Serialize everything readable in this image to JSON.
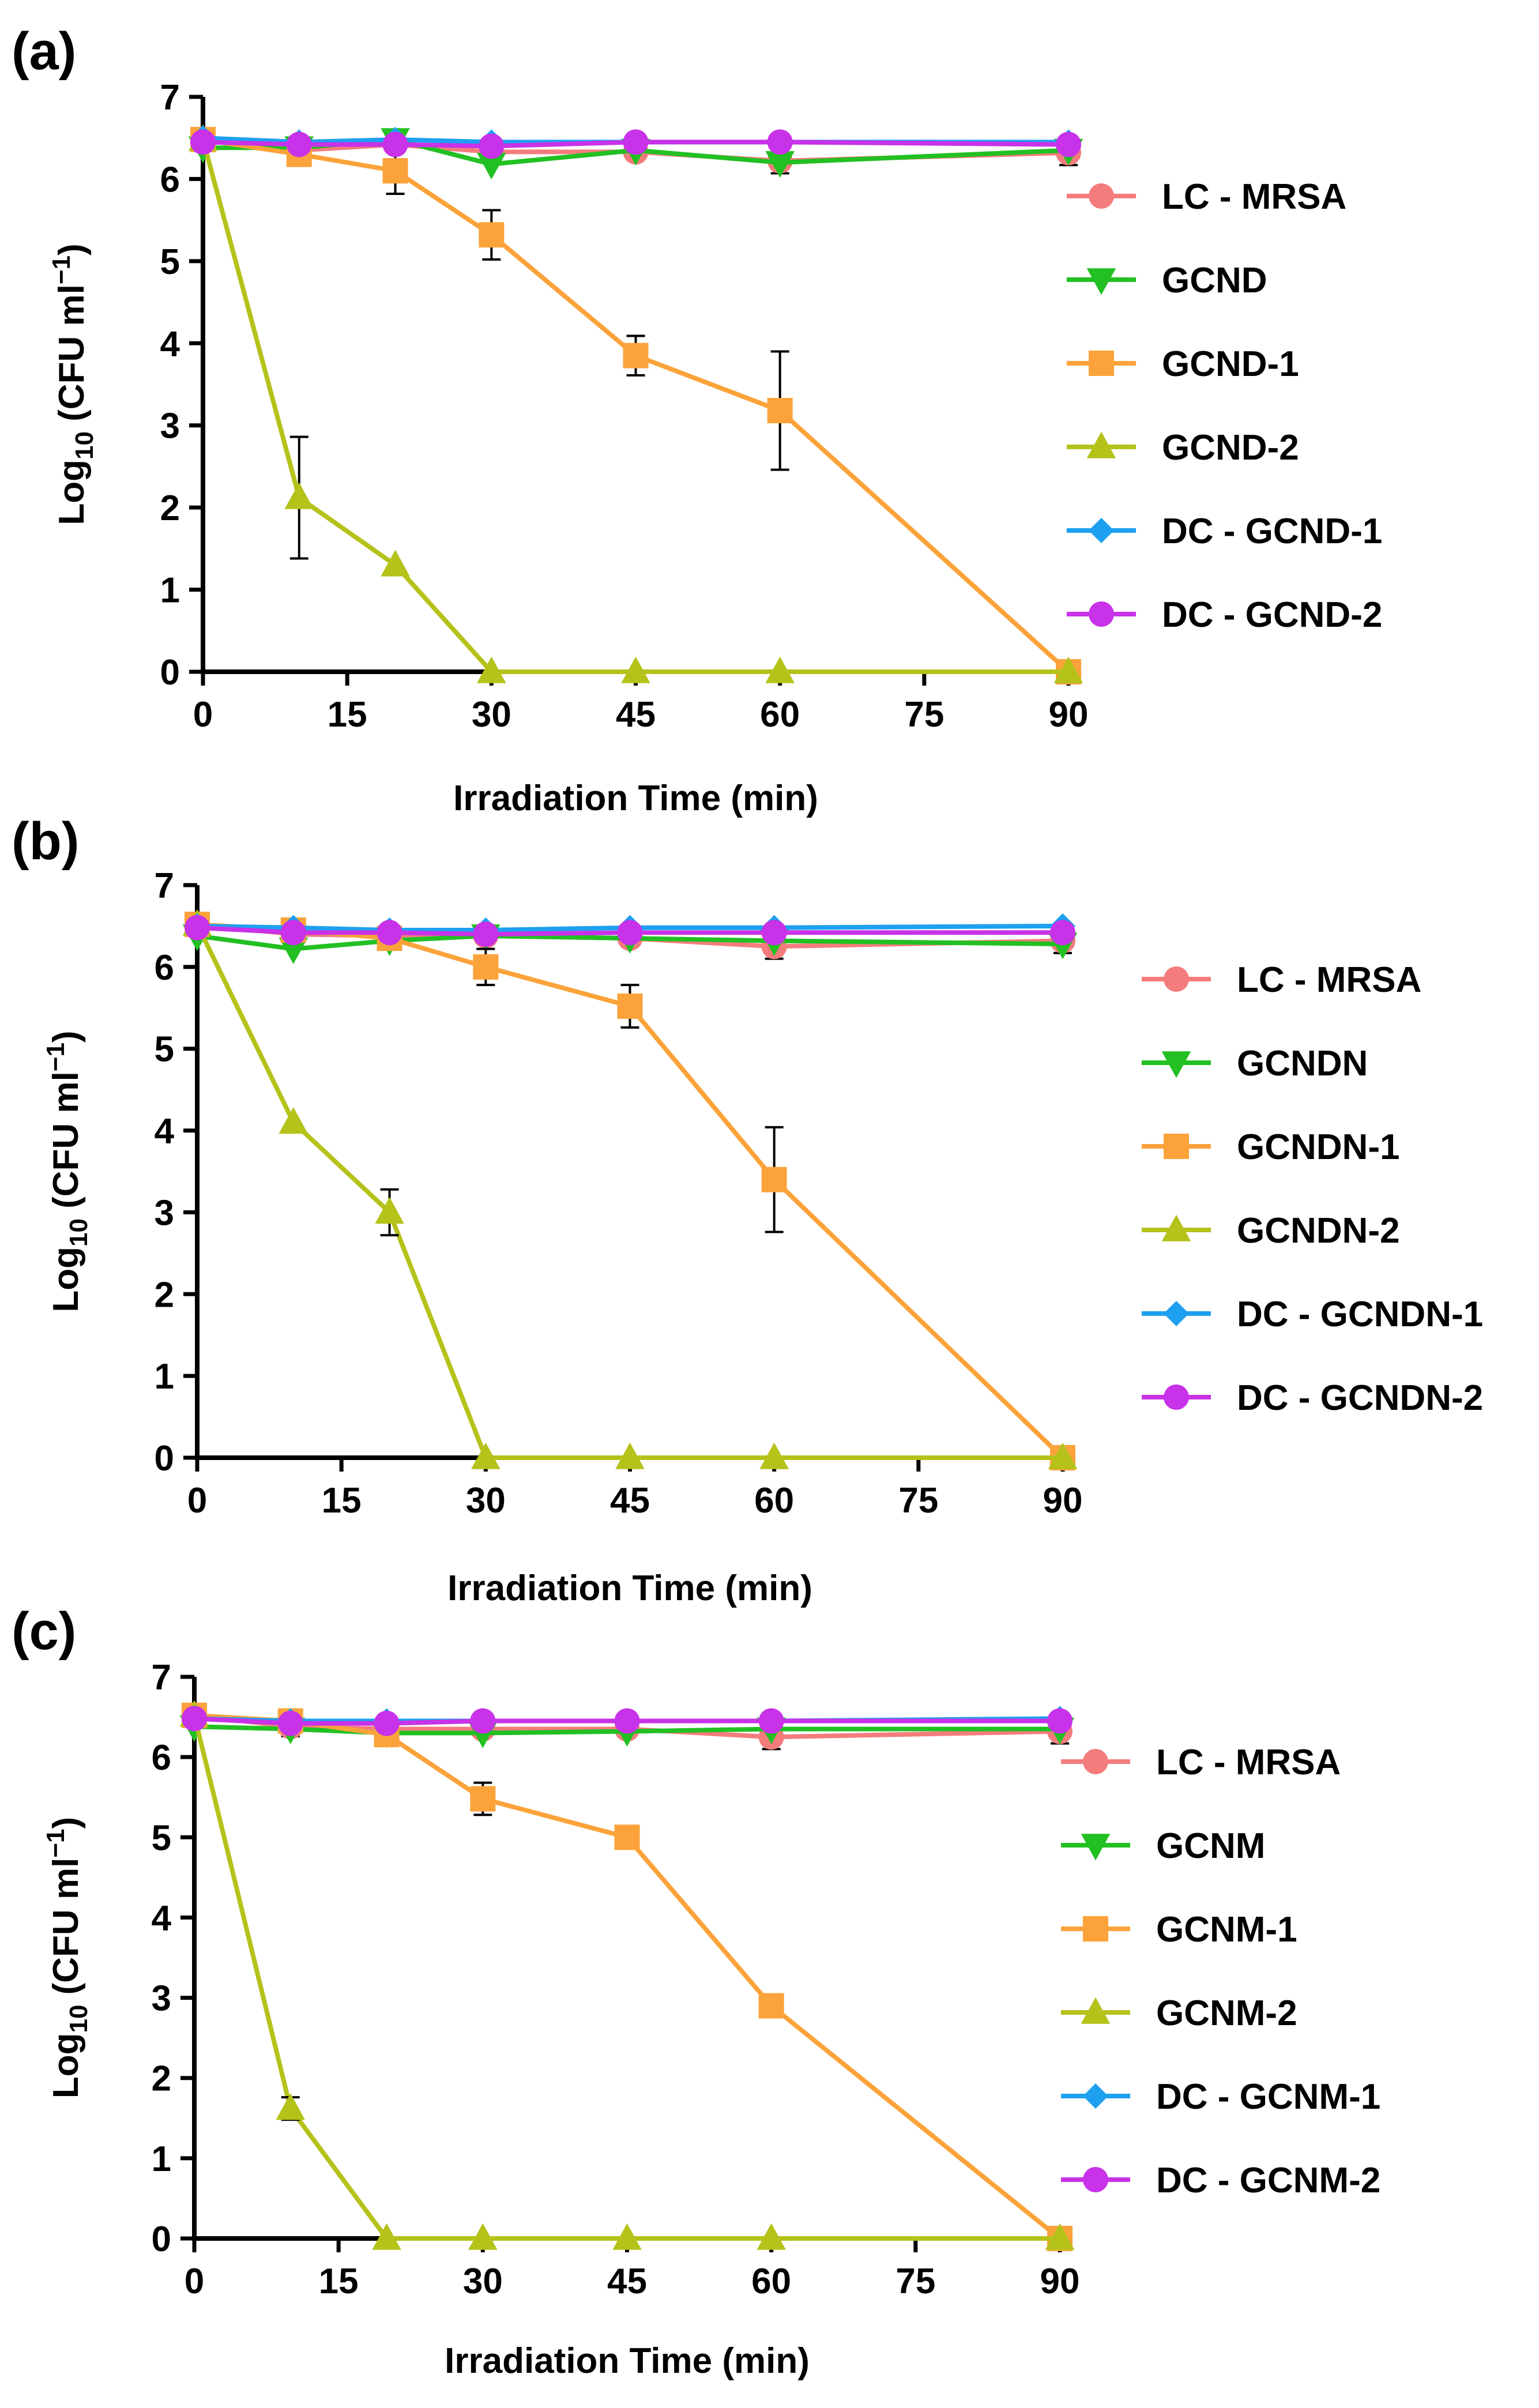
{
  "chart_data": [
    {
      "type": "line",
      "panel_label": "(a)",
      "title": "",
      "xlabel": "Irradiation Time (min)",
      "ylabel": "Log10 (CFU ml-1)",
      "ylabel_parts": {
        "main": "Log",
        "sub": "10",
        "paren_open": " (CFU ml",
        "sup": "−1",
        "paren_close": ")"
      },
      "xlim": [
        0,
        90
      ],
      "ylim": [
        0,
        7
      ],
      "x_ticks": [
        0,
        15,
        30,
        45,
        60,
        75,
        90
      ],
      "y_ticks": [
        0,
        1,
        2,
        3,
        4,
        5,
        6,
        7
      ],
      "x_tick_labels": [
        "0",
        "15",
        "30",
        "45",
        "60",
        "75",
        "90"
      ],
      "y_tick_labels": [
        "0",
        "1",
        "2",
        "3",
        "4",
        "5",
        "6",
        "7"
      ],
      "grid": false,
      "legend_position": "right",
      "series": [
        {
          "name": "LC - MRSA",
          "color": "#f47c7c",
          "marker": "circle",
          "x": [
            0,
            10,
            20,
            30,
            45,
            60,
            90
          ],
          "y": [
            6.48,
            6.35,
            6.42,
            6.33,
            6.33,
            6.22,
            6.32
          ],
          "err": [
            0.05,
            0.12,
            0.08,
            0.05,
            0.05,
            0.15,
            0.15
          ]
        },
        {
          "name": "GCND",
          "color": "#22c022",
          "marker": "triangle-down",
          "x": [
            0,
            10,
            20,
            30,
            45,
            60,
            90
          ],
          "y": [
            6.38,
            6.38,
            6.48,
            6.18,
            6.35,
            6.2,
            6.35
          ],
          "err": [
            0.05,
            0.05,
            0.05,
            0.05,
            0.05,
            0.05,
            0.05
          ]
        },
        {
          "name": "GCND-1",
          "color": "#fba33a",
          "marker": "square",
          "x": [
            0,
            10,
            20,
            30,
            45,
            60,
            90
          ],
          "y": [
            6.48,
            6.3,
            6.1,
            5.32,
            3.85,
            3.18,
            0.0
          ],
          "err": [
            0.05,
            0.1,
            0.28,
            0.3,
            0.24,
            0.72,
            0.0
          ]
        },
        {
          "name": "GCND-2",
          "color": "#b5c21a",
          "marker": "triangle-up",
          "x": [
            0,
            10,
            20,
            30,
            45,
            60,
            90
          ],
          "y": [
            6.48,
            2.12,
            1.3,
            0.0,
            0.0,
            0.0,
            0.0
          ],
          "err": [
            0.05,
            0.74,
            0.05,
            0.0,
            0.0,
            0.0,
            0.0
          ]
        },
        {
          "name": "DC - GCND-1",
          "color": "#1ea0f0",
          "marker": "diamond",
          "x": [
            0,
            10,
            20,
            30,
            45,
            60,
            90
          ],
          "y": [
            6.5,
            6.45,
            6.48,
            6.45,
            6.45,
            6.45,
            6.45
          ],
          "err": [
            0.0,
            0.0,
            0.0,
            0.0,
            0.0,
            0.0,
            0.0
          ]
        },
        {
          "name": "DC - GCND-2",
          "color": "#c832e8",
          "marker": "circle",
          "x": [
            0,
            10,
            20,
            30,
            45,
            60,
            90
          ],
          "y": [
            6.45,
            6.42,
            6.42,
            6.4,
            6.45,
            6.45,
            6.42
          ],
          "err": [
            0.0,
            0.0,
            0.0,
            0.0,
            0.0,
            0.0,
            0.0
          ]
        }
      ]
    },
    {
      "type": "line",
      "panel_label": "(b)",
      "title": "",
      "xlabel": "Irradiation Time (min)",
      "ylabel": "Log10 (CFU ml-1)",
      "ylabel_parts": {
        "main": "Log",
        "sub": "10",
        "paren_open": " (CFU ml",
        "sup": "−1",
        "paren_close": ")"
      },
      "xlim": [
        0,
        90
      ],
      "ylim": [
        0,
        7
      ],
      "x_ticks": [
        0,
        15,
        30,
        45,
        60,
        75,
        90
      ],
      "y_ticks": [
        0,
        1,
        2,
        3,
        4,
        5,
        6,
        7
      ],
      "x_tick_labels": [
        "0",
        "15",
        "30",
        "45",
        "60",
        "75",
        "90"
      ],
      "y_tick_labels": [
        "0",
        "1",
        "2",
        "3",
        "4",
        "5",
        "6",
        "7"
      ],
      "grid": false,
      "legend_position": "right",
      "series": [
        {
          "name": "LC - MRSA",
          "color": "#f47c7c",
          "marker": "circle",
          "x": [
            0,
            10,
            20,
            30,
            45,
            60,
            90
          ],
          "y": [
            6.52,
            6.4,
            6.38,
            6.38,
            6.35,
            6.25,
            6.32
          ],
          "err": [
            0.05,
            0.1,
            0.08,
            0.05,
            0.08,
            0.15,
            0.15
          ]
        },
        {
          "name": "GCNDN",
          "color": "#22c022",
          "marker": "triangle-down",
          "x": [
            0,
            10,
            20,
            30,
            45,
            60,
            90
          ],
          "y": [
            6.38,
            6.22,
            6.32,
            6.38,
            6.35,
            6.32,
            6.28
          ],
          "err": [
            0.05,
            0.05,
            0.05,
            0.05,
            0.05,
            0.05,
            0.05
          ]
        },
        {
          "name": "GCNDN-1",
          "color": "#fba33a",
          "marker": "square",
          "x": [
            0,
            10,
            20,
            30,
            45,
            60,
            90
          ],
          "y": [
            6.52,
            6.45,
            6.35,
            6.0,
            5.52,
            3.4,
            0.0
          ],
          "err": [
            0.05,
            0.08,
            0.05,
            0.22,
            0.26,
            0.64,
            0.0
          ]
        },
        {
          "name": "GCNDN-2",
          "color": "#b5c21a",
          "marker": "triangle-up",
          "x": [
            0,
            10,
            20,
            30,
            45,
            60,
            90
          ],
          "y": [
            6.52,
            4.1,
            3.0,
            0.0,
            0.0,
            0.0,
            0.0
          ],
          "err": [
            0.05,
            0.05,
            0.28,
            0.0,
            0.0,
            0.0,
            0.0
          ]
        },
        {
          "name": "DC - GCNDN-1",
          "color": "#1ea0f0",
          "marker": "diamond",
          "x": [
            0,
            10,
            20,
            30,
            45,
            60,
            90
          ],
          "y": [
            6.5,
            6.48,
            6.45,
            6.45,
            6.48,
            6.48,
            6.5
          ],
          "err": [
            0.0,
            0.0,
            0.0,
            0.0,
            0.0,
            0.0,
            0.0
          ]
        },
        {
          "name": "DC - GCNDN-2",
          "color": "#c832e8",
          "marker": "circle",
          "x": [
            0,
            10,
            20,
            30,
            45,
            60,
            90
          ],
          "y": [
            6.48,
            6.42,
            6.42,
            6.4,
            6.42,
            6.42,
            6.42
          ],
          "err": [
            0.0,
            0.0,
            0.0,
            0.0,
            0.0,
            0.0,
            0.0
          ]
        }
      ]
    },
    {
      "type": "line",
      "panel_label": "(c)",
      "title": "",
      "xlabel": "Irradiation Time (min)",
      "ylabel": "Log10 (CFU ml-1)",
      "ylabel_parts": {
        "main": "Log",
        "sub": "10",
        "paren_open": " (CFU ml",
        "sup": "−1",
        "paren_close": ")"
      },
      "xlim": [
        0,
        90
      ],
      "ylim": [
        0,
        7
      ],
      "x_ticks": [
        0,
        15,
        30,
        45,
        60,
        75,
        90
      ],
      "y_ticks": [
        0,
        1,
        2,
        3,
        4,
        5,
        6,
        7
      ],
      "x_tick_labels": [
        "0",
        "15",
        "30",
        "45",
        "60",
        "75",
        "90"
      ],
      "y_tick_labels": [
        "0",
        "1",
        "2",
        "3",
        "4",
        "5",
        "6",
        "7"
      ],
      "grid": false,
      "legend_position": "right",
      "series": [
        {
          "name": "LC - MRSA",
          "color": "#f47c7c",
          "marker": "circle",
          "x": [
            0,
            10,
            20,
            30,
            45,
            60,
            90
          ],
          "y": [
            6.52,
            6.38,
            6.35,
            6.35,
            6.35,
            6.25,
            6.32
          ],
          "err": [
            0.05,
            0.12,
            0.08,
            0.05,
            0.05,
            0.15,
            0.15
          ]
        },
        {
          "name": "GCNM",
          "color": "#22c022",
          "marker": "triangle-down",
          "x": [
            0,
            10,
            20,
            30,
            45,
            60,
            90
          ],
          "y": [
            6.38,
            6.35,
            6.3,
            6.3,
            6.32,
            6.35,
            6.35
          ],
          "err": [
            0.05,
            0.05,
            0.05,
            0.05,
            0.05,
            0.05,
            0.05
          ]
        },
        {
          "name": "GCNM-1",
          "color": "#fba33a",
          "marker": "square",
          "x": [
            0,
            10,
            20,
            30,
            45,
            60,
            90
          ],
          "y": [
            6.52,
            6.45,
            6.28,
            5.48,
            5.0,
            2.9,
            0.0
          ],
          "err": [
            0.05,
            0.08,
            0.08,
            0.2,
            0.05,
            0.12,
            0.0
          ]
        },
        {
          "name": "GCNM-2",
          "color": "#b5c21a",
          "marker": "triangle-up",
          "x": [
            0,
            10,
            20,
            30,
            45,
            60,
            90
          ],
          "y": [
            6.52,
            1.62,
            0.0,
            0.0,
            0.0,
            0.0,
            0.0
          ],
          "err": [
            0.05,
            0.14,
            0.0,
            0.0,
            0.0,
            0.0,
            0.0
          ]
        },
        {
          "name": "DC - GCNM-1",
          "color": "#1ea0f0",
          "marker": "diamond",
          "x": [
            0,
            10,
            20,
            30,
            45,
            60,
            90
          ],
          "y": [
            6.48,
            6.45,
            6.45,
            6.45,
            6.45,
            6.45,
            6.48
          ],
          "err": [
            0.0,
            0.0,
            0.0,
            0.0,
            0.0,
            0.0,
            0.0
          ]
        },
        {
          "name": "DC - GCNM-2",
          "color": "#c832e8",
          "marker": "circle",
          "x": [
            0,
            10,
            20,
            30,
            45,
            60,
            90
          ],
          "y": [
            6.48,
            6.42,
            6.42,
            6.45,
            6.45,
            6.45,
            6.45
          ],
          "err": [
            0.0,
            0.0,
            0.0,
            0.0,
            0.0,
            0.0,
            0.0
          ]
        }
      ]
    }
  ]
}
